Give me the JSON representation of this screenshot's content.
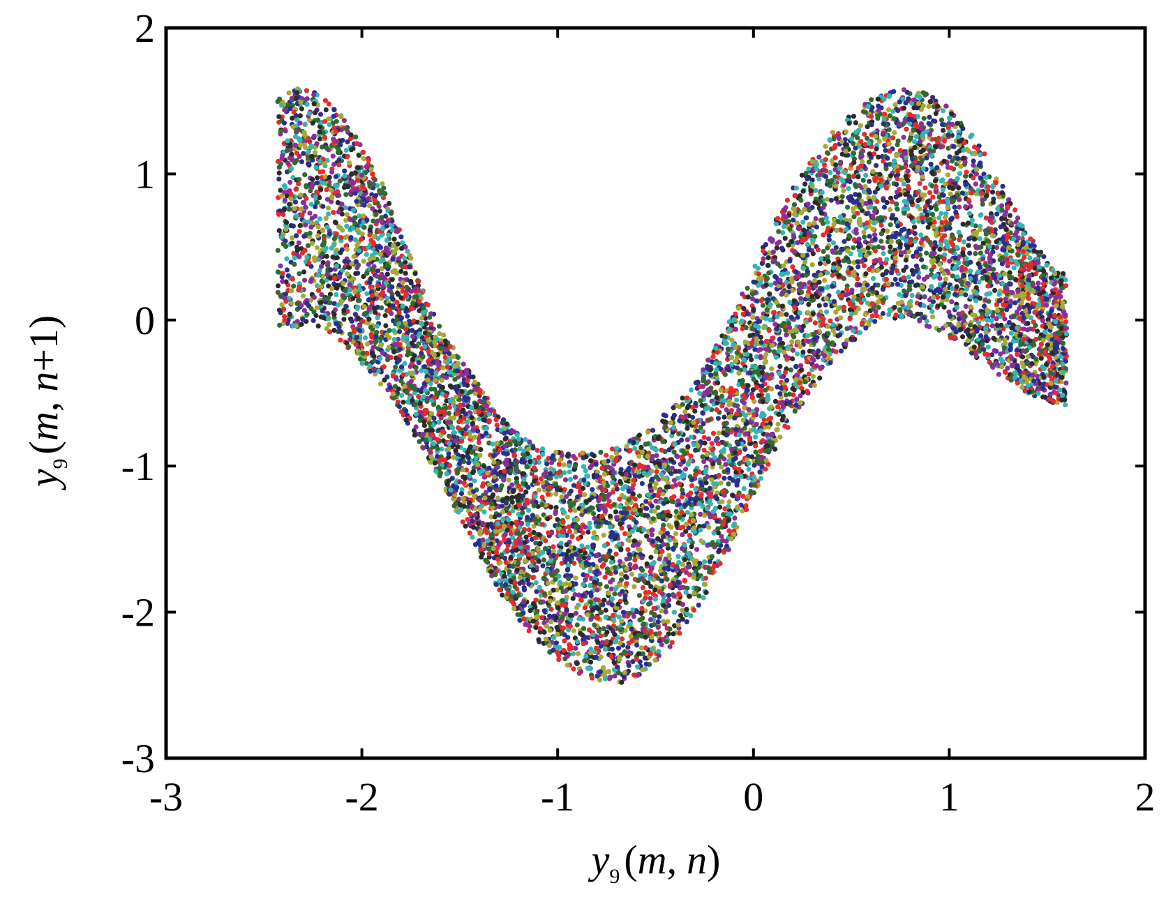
{
  "chart_data": {
    "type": "scatter",
    "title": "",
    "xlabel": {
      "var": "y",
      "sub": "9",
      "open": "(",
      "m": "m",
      "comma": ",",
      "n": "n",
      "close": ")"
    },
    "ylabel": {
      "var": "y",
      "sub": "9",
      "open": "(",
      "m": "m",
      "comma": ",",
      "n": "n",
      "plus_one": "+1)"
    },
    "xlim": [
      -3,
      2
    ],
    "ylim": [
      -3,
      2
    ],
    "xticks": [
      -3,
      -2,
      -1,
      0,
      1,
      2
    ],
    "yticks": [
      -3,
      -2,
      -1,
      0,
      1,
      2
    ],
    "xtick_labels": [
      "-3",
      "-2",
      "-1",
      "0",
      "1",
      "2"
    ],
    "ytick_labels": [
      "-3",
      "-2",
      "-1",
      "0",
      "1",
      "2"
    ],
    "grid": false,
    "legend": "none",
    "marker_colors": [
      "#e62b2b",
      "#2a2f8f",
      "#2f6b2f",
      "#8a2f9a",
      "#33b5b5",
      "#a8a832",
      "#2b2b2b"
    ],
    "band": {
      "x_range": [
        -2.43,
        1.6
      ],
      "upper_boundary": [
        [
          -2.43,
          1.55
        ],
        [
          -2.3,
          1.6
        ],
        [
          -2.2,
          1.55
        ],
        [
          -2.1,
          1.4
        ],
        [
          -2.0,
          1.2
        ],
        [
          -1.9,
          0.95
        ],
        [
          -1.8,
          0.6
        ],
        [
          -1.7,
          0.25
        ],
        [
          -1.6,
          -0.05
        ],
        [
          -1.5,
          -0.25
        ],
        [
          -1.4,
          -0.45
        ],
        [
          -1.3,
          -0.65
        ],
        [
          -1.2,
          -0.78
        ],
        [
          -1.1,
          -0.87
        ],
        [
          -1.0,
          -0.9
        ],
        [
          -0.9,
          -0.91
        ],
        [
          -0.8,
          -0.9
        ],
        [
          -0.7,
          -0.87
        ],
        [
          -0.6,
          -0.8
        ],
        [
          -0.5,
          -0.7
        ],
        [
          -0.4,
          -0.58
        ],
        [
          -0.3,
          -0.42
        ],
        [
          -0.2,
          -0.2
        ],
        [
          -0.1,
          0.05
        ],
        [
          0.0,
          0.35
        ],
        [
          0.1,
          0.65
        ],
        [
          0.2,
          0.9
        ],
        [
          0.3,
          1.1
        ],
        [
          0.4,
          1.28
        ],
        [
          0.5,
          1.42
        ],
        [
          0.6,
          1.52
        ],
        [
          0.7,
          1.57
        ],
        [
          0.8,
          1.58
        ],
        [
          0.9,
          1.55
        ],
        [
          1.0,
          1.45
        ],
        [
          1.1,
          1.3
        ],
        [
          1.2,
          1.1
        ],
        [
          1.3,
          0.85
        ],
        [
          1.4,
          0.6
        ],
        [
          1.5,
          0.4
        ],
        [
          1.6,
          0.3
        ]
      ],
      "lower_boundary": [
        [
          -2.43,
          -0.1
        ],
        [
          -2.3,
          -0.05
        ],
        [
          -2.2,
          -0.05
        ],
        [
          -2.1,
          -0.15
        ],
        [
          -2.0,
          -0.3
        ],
        [
          -1.9,
          -0.45
        ],
        [
          -1.8,
          -0.65
        ],
        [
          -1.7,
          -0.85
        ],
        [
          -1.6,
          -1.1
        ],
        [
          -1.5,
          -1.35
        ],
        [
          -1.4,
          -1.6
        ],
        [
          -1.3,
          -1.85
        ],
        [
          -1.2,
          -2.05
        ],
        [
          -1.1,
          -2.2
        ],
        [
          -1.0,
          -2.33
        ],
        [
          -0.9,
          -2.43
        ],
        [
          -0.8,
          -2.48
        ],
        [
          -0.7,
          -2.5
        ],
        [
          -0.6,
          -2.45
        ],
        [
          -0.5,
          -2.35
        ],
        [
          -0.4,
          -2.2
        ],
        [
          -0.3,
          -2.0
        ],
        [
          -0.2,
          -1.78
        ],
        [
          -0.1,
          -1.5
        ],
        [
          0.0,
          -1.2
        ],
        [
          0.1,
          -0.92
        ],
        [
          0.2,
          -0.68
        ],
        [
          0.3,
          -0.48
        ],
        [
          0.4,
          -0.3
        ],
        [
          0.5,
          -0.15
        ],
        [
          0.6,
          -0.05
        ],
        [
          0.7,
          0.0
        ],
        [
          0.8,
          0.0
        ],
        [
          0.9,
          -0.05
        ],
        [
          1.0,
          -0.12
        ],
        [
          1.1,
          -0.22
        ],
        [
          1.2,
          -0.32
        ],
        [
          1.3,
          -0.42
        ],
        [
          1.4,
          -0.5
        ],
        [
          1.5,
          -0.56
        ],
        [
          1.6,
          -0.6
        ]
      ],
      "approx_points": 9000
    }
  }
}
